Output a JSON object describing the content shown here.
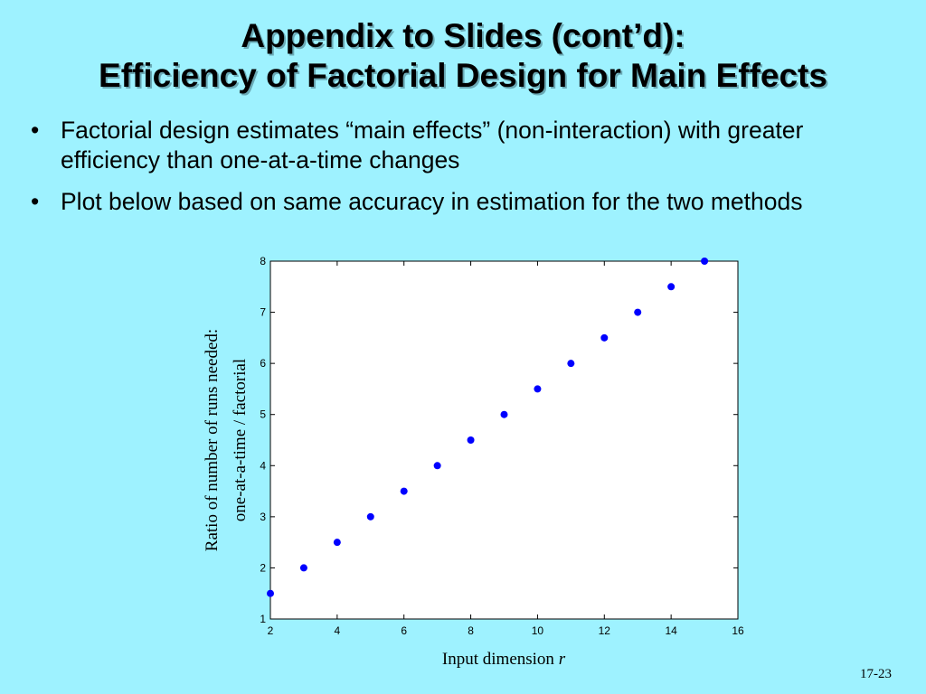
{
  "slide": {
    "title_line1": "Appendix to Slides (cont’d):",
    "title_line2": "Efficiency of Factorial Design for Main Effects",
    "bullets": [
      "Factorial design estimates “main effects” (non-interaction) with greater efficiency than one-at-a-time changes",
      "Plot below based on same accuracy in estimation for the two methods"
    ],
    "bullet_glyph": "•",
    "slide_number": "17-23"
  },
  "chart_data": {
    "type": "scatter",
    "title": "",
    "xlabel": "Input dimension",
    "xlabel_var": "r",
    "ylabel_line1": "Ratio of number of runs needed:",
    "ylabel_line2": "one-at-a-time / factorial",
    "xlim": [
      2,
      16
    ],
    "ylim": [
      1,
      8
    ],
    "xticks": [
      2,
      4,
      6,
      8,
      10,
      12,
      14,
      16
    ],
    "yticks": [
      1,
      2,
      3,
      4,
      5,
      6,
      7,
      8
    ],
    "grid": false,
    "point_color": "#0000ff",
    "x": [
      2,
      3,
      4,
      5,
      6,
      7,
      8,
      9,
      10,
      11,
      12,
      13,
      14,
      15
    ],
    "y": [
      1.5,
      2.0,
      2.5,
      3.0,
      3.5,
      4.0,
      4.5,
      5.0,
      5.5,
      6.0,
      6.5,
      7.0,
      7.5,
      8.0
    ]
  }
}
